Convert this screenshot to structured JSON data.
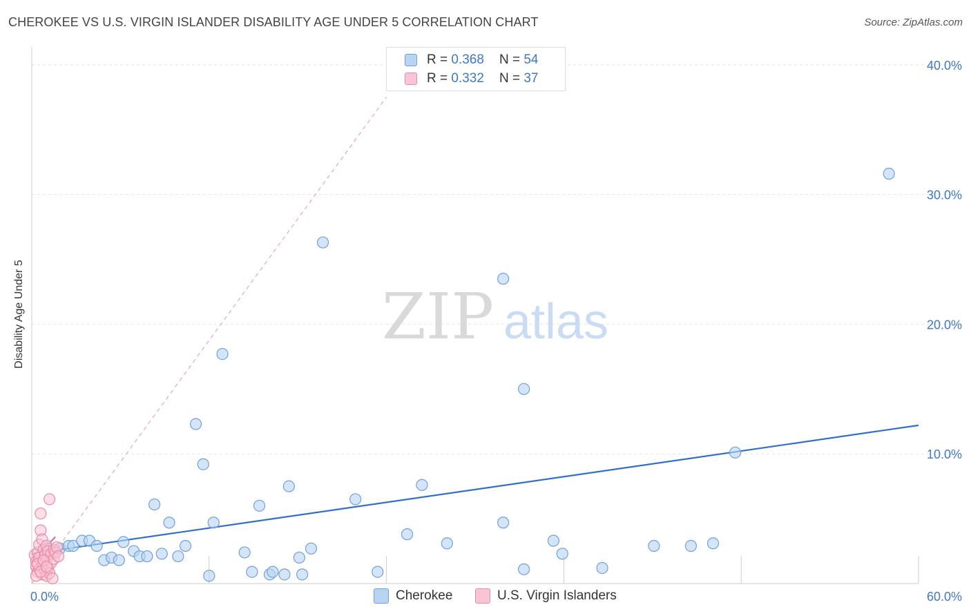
{
  "header": {
    "title": "CHEROKEE VS U.S. VIRGIN ISLANDER DISABILITY AGE UNDER 5 CORRELATION CHART",
    "source": "Source: ZipAtlas.com"
  },
  "watermark": {
    "zip": "ZIP",
    "atlas": "atlas"
  },
  "legend": {
    "r_label": "R =",
    "n_label": "N =",
    "series": [
      {
        "name": "Cherokee",
        "r": "0.368",
        "n": "54"
      },
      {
        "name": "U.S. Virgin Islanders",
        "r": "0.332",
        "n": "37"
      }
    ]
  },
  "chart_data": {
    "type": "scatter",
    "title": "CHEROKEE VS U.S. VIRGIN ISLANDER DISABILITY AGE UNDER 5 CORRELATION CHART",
    "xlabel": "",
    "ylabel": "Disability Age Under 5",
    "xlim": [
      0,
      60
    ],
    "ylim": [
      0,
      41
    ],
    "x_tick_labels": [
      "0.0%",
      "60.0%"
    ],
    "y_ticks": [
      10,
      20,
      30,
      40
    ],
    "y_tick_labels": [
      "10.0%",
      "20.0%",
      "30.0%",
      "40.0%"
    ],
    "grid": true,
    "legend_position": "top-center",
    "colors": {
      "cherokee": "#6f9fdc",
      "cherokee_fill": "#b9d3f3",
      "cherokee_line": "#2f6fcc",
      "usvi": "#e889a8",
      "usvi_fill": "#f9c4d3",
      "usvi_line": "#e06c92"
    },
    "series": [
      {
        "name": "Cherokee",
        "trend": {
          "x": [
            0,
            60
          ],
          "y": [
            2.3,
            12.2
          ],
          "style": "solid"
        },
        "points": [
          [
            1.1,
            2.7
          ],
          [
            1.9,
            2.7
          ],
          [
            2.5,
            2.9
          ],
          [
            2.8,
            2.9
          ],
          [
            3.4,
            3.3
          ],
          [
            3.9,
            3.3
          ],
          [
            4.4,
            2.9
          ],
          [
            4.9,
            1.8
          ],
          [
            5.4,
            2.0
          ],
          [
            5.9,
            1.8
          ],
          [
            6.2,
            3.2
          ],
          [
            6.9,
            2.5
          ],
          [
            7.3,
            2.1
          ],
          [
            7.8,
            2.1
          ],
          [
            8.3,
            6.1
          ],
          [
            8.8,
            2.3
          ],
          [
            9.3,
            4.7
          ],
          [
            9.9,
            2.1
          ],
          [
            10.4,
            2.9
          ],
          [
            11.1,
            12.3
          ],
          [
            11.6,
            9.2
          ],
          [
            12.0,
            0.6
          ],
          [
            12.3,
            4.7
          ],
          [
            12.9,
            17.7
          ],
          [
            14.4,
            2.4
          ],
          [
            14.9,
            0.9
          ],
          [
            15.4,
            6.0
          ],
          [
            16.1,
            0.7
          ],
          [
            16.3,
            0.9
          ],
          [
            17.1,
            0.7
          ],
          [
            17.4,
            7.5
          ],
          [
            18.1,
            2.0
          ],
          [
            18.3,
            0.7
          ],
          [
            18.9,
            2.7
          ],
          [
            19.7,
            26.3
          ],
          [
            21.9,
            6.5
          ],
          [
            23.4,
            0.9
          ],
          [
            25.4,
            3.8
          ],
          [
            26.4,
            7.6
          ],
          [
            28.1,
            3.1
          ],
          [
            31.9,
            23.5
          ],
          [
            31.9,
            4.7
          ],
          [
            33.3,
            15.0
          ],
          [
            33.3,
            1.1
          ],
          [
            35.3,
            3.3
          ],
          [
            35.9,
            2.3
          ],
          [
            38.6,
            1.2
          ],
          [
            42.1,
            2.9
          ],
          [
            44.6,
            2.9
          ],
          [
            46.1,
            3.1
          ],
          [
            47.6,
            10.1
          ],
          [
            58.0,
            31.6
          ],
          [
            0.6,
            2.1
          ],
          [
            0.9,
            1.9
          ]
        ]
      },
      {
        "name": "U.S. Virgin Islanders",
        "trend": {
          "x": [
            0,
            1.6
          ],
          "y": [
            1.7,
            3.6
          ],
          "style": "solid"
        },
        "extended_trend": {
          "x": [
            0,
            24
          ],
          "y": [
            0.0,
            37.5
          ],
          "style": "dashed"
        },
        "points": [
          [
            0.2,
            2.2
          ],
          [
            0.3,
            1.7
          ],
          [
            0.3,
            1.3
          ],
          [
            0.4,
            2.4
          ],
          [
            0.4,
            0.9
          ],
          [
            0.5,
            3.0
          ],
          [
            0.5,
            1.1
          ],
          [
            0.5,
            2.0
          ],
          [
            0.6,
            5.4
          ],
          [
            0.6,
            4.1
          ],
          [
            0.7,
            3.4
          ],
          [
            0.7,
            1.6
          ],
          [
            0.7,
            0.7
          ],
          [
            0.8,
            2.6
          ],
          [
            0.8,
            1.4
          ],
          [
            0.9,
            1.0
          ],
          [
            0.9,
            2.2
          ],
          [
            1.0,
            1.8
          ],
          [
            1.0,
            0.6
          ],
          [
            1.0,
            2.9
          ],
          [
            1.1,
            1.2
          ],
          [
            1.1,
            2.5
          ],
          [
            1.2,
            0.8
          ],
          [
            1.2,
            6.5
          ],
          [
            1.3,
            1.6
          ],
          [
            1.3,
            2.3
          ],
          [
            1.4,
            0.4
          ],
          [
            1.5,
            2.6
          ],
          [
            1.5,
            1.9
          ],
          [
            1.6,
            2.4
          ],
          [
            1.7,
            2.8
          ],
          [
            1.8,
            2.1
          ],
          [
            0.3,
            0.6
          ],
          [
            0.4,
            1.5
          ],
          [
            0.6,
            0.9
          ],
          [
            0.8,
            1.8
          ],
          [
            1.0,
            1.3
          ]
        ]
      }
    ]
  }
}
